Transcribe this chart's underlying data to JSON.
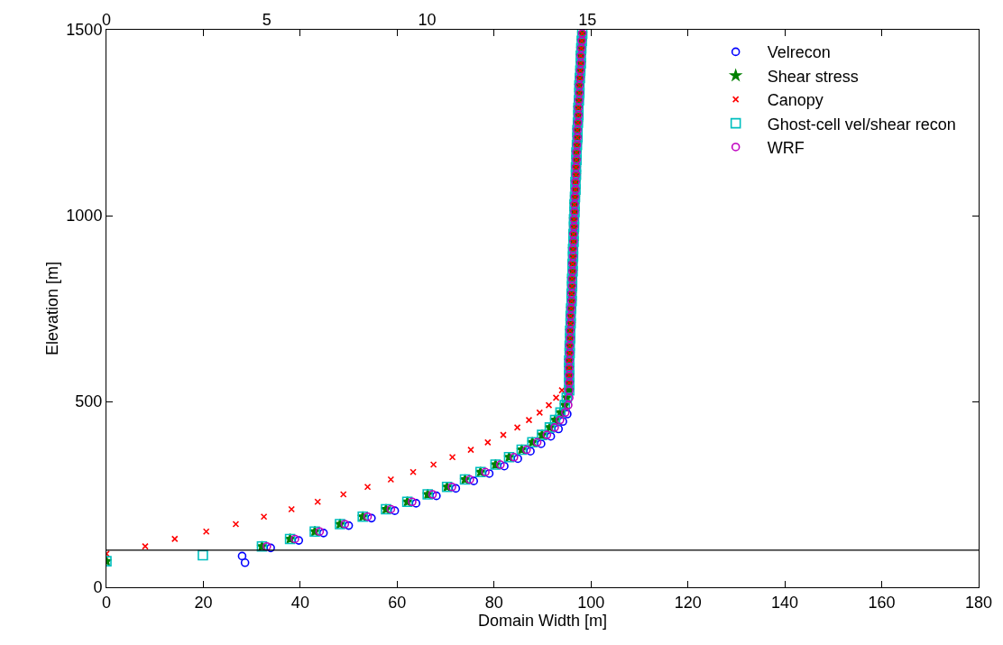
{
  "chart_data": {
    "type": "scatter",
    "xlabel": "Domain Width [m]",
    "ylabel": "Elevation [m]",
    "xlim": [
      0,
      180
    ],
    "xticks": [
      0,
      20,
      40,
      60,
      80,
      100,
      120,
      140,
      160,
      180
    ],
    "ylim": [
      0,
      1500
    ],
    "yticks": [
      0,
      500,
      1000,
      1500
    ],
    "x2lim": [
      0,
      27.2
    ],
    "x2ticks": [
      0,
      5,
      10,
      15
    ],
    "legend": "top right",
    "ref_lines": [
      {
        "axis": "y",
        "value": 100,
        "color": "#000000"
      }
    ],
    "series": [
      {
        "name": "Velrecon",
        "color": "#0000ff",
        "marker": "circle",
        "x": [
          28.6,
          28.0,
          33.9,
          39.7,
          44.8,
          50.0,
          54.7,
          59.5,
          63.9,
          68.1,
          72.1,
          75.8,
          79.0,
          82.1,
          84.9,
          87.5,
          89.7,
          91.7,
          93.3,
          94.2,
          95.1
        ],
        "values": [
          66,
          84,
          106,
          126,
          146,
          166,
          186,
          206,
          226,
          246,
          266,
          286,
          306,
          326,
          346,
          366,
          386,
          406,
          426,
          446,
          466
        ]
      },
      {
        "name": "Shear stress",
        "color": "#008000",
        "marker": "star",
        "x": [
          0,
          32.1,
          37.9,
          43.0,
          48.2,
          52.9,
          57.7,
          62.1,
          66.3,
          70.3,
          74.0,
          77.2,
          80.3,
          83.1,
          85.7,
          87.9,
          89.9,
          91.5,
          92.6,
          93.7,
          94.6,
          95.0,
          95.5,
          95.5,
          95.5,
          95.5,
          95.5,
          95.6,
          95.6,
          95.7,
          95.7,
          95.8,
          95.8,
          95.9,
          96.0,
          96.0,
          96.1,
          96.1,
          96.2,
          96.2,
          96.3,
          96.3,
          96.4,
          96.4,
          96.5,
          96.5,
          96.6,
          96.6,
          96.7,
          96.8,
          96.8,
          96.9,
          96.9,
          97.0,
          97.0,
          97.1,
          97.2,
          97.2,
          97.3,
          97.4,
          97.4,
          97.5,
          97.6,
          97.6,
          97.7,
          97.8,
          97.9,
          97.9,
          98.0,
          98.1,
          98.2
        ],
        "values": [
          70,
          110,
          130,
          150,
          170,
          190,
          210,
          230,
          250,
          270,
          290,
          310,
          330,
          350,
          370,
          390,
          410,
          430,
          450,
          470,
          490,
          510,
          530,
          550,
          570,
          590,
          610,
          630,
          650,
          670,
          690,
          710,
          730,
          750,
          770,
          790,
          810,
          830,
          850,
          870,
          890,
          910,
          930,
          950,
          970,
          990,
          1010,
          1030,
          1050,
          1070,
          1090,
          1110,
          1130,
          1150,
          1170,
          1190,
          1210,
          1230,
          1250,
          1270,
          1290,
          1310,
          1330,
          1350,
          1370,
          1390,
          1410,
          1430,
          1450,
          1470,
          1490
        ]
      },
      {
        "name": "Canopy",
        "color": "#ff0000",
        "marker": "cross",
        "x": [
          0,
          8.0,
          14.1,
          20.6,
          26.7,
          32.5,
          38.2,
          43.6,
          48.9,
          53.9,
          58.7,
          63.3,
          67.5,
          71.4,
          75.2,
          78.7,
          81.9,
          84.8,
          87.2,
          89.4,
          91.3,
          92.8,
          94.0,
          95.5,
          95.5,
          95.5,
          95.5,
          95.6,
          95.6,
          95.7,
          95.7,
          95.8,
          95.8,
          95.9,
          96.0,
          96.0,
          96.1,
          96.1,
          96.2,
          96.2,
          96.3,
          96.3,
          96.4,
          96.4,
          96.5,
          96.5,
          96.6,
          96.6,
          96.7,
          96.8,
          96.8,
          96.9,
          96.9,
          97.0,
          97.0,
          97.1,
          97.2,
          97.2,
          97.3,
          97.4,
          97.4,
          97.5,
          97.6,
          97.6,
          97.7,
          97.8,
          97.9,
          97.9,
          98.0,
          98.1,
          98.2
        ],
        "values": [
          90,
          110,
          130,
          150,
          170,
          190,
          210,
          230,
          250,
          270,
          290,
          310,
          330,
          350,
          370,
          390,
          410,
          430,
          450,
          470,
          490,
          510,
          530,
          550,
          570,
          590,
          610,
          630,
          650,
          670,
          690,
          710,
          730,
          750,
          770,
          790,
          810,
          830,
          850,
          870,
          890,
          910,
          930,
          950,
          970,
          990,
          1010,
          1030,
          1050,
          1070,
          1090,
          1110,
          1130,
          1150,
          1170,
          1190,
          1210,
          1230,
          1250,
          1270,
          1290,
          1310,
          1330,
          1350,
          1370,
          1390,
          1410,
          1430,
          1450,
          1470,
          1490
        ]
      },
      {
        "name": "Ghost-cell vel/shear recon",
        "color": "#00bfbf",
        "marker": "square",
        "x": [
          0,
          19.9,
          32.1,
          37.9,
          43.0,
          48.2,
          52.9,
          57.7,
          62.1,
          66.3,
          70.3,
          74.0,
          77.2,
          80.3,
          83.1,
          85.7,
          87.9,
          89.9,
          91.5,
          92.6,
          93.7,
          94.6,
          95.0,
          95.5,
          95.5,
          95.5,
          95.5,
          95.5,
          95.6,
          95.6,
          95.7,
          95.7,
          95.8,
          95.8,
          95.9,
          96.0,
          96.0,
          96.1,
          96.1,
          96.2,
          96.2,
          96.3,
          96.3,
          96.4,
          96.4,
          96.5,
          96.5,
          96.6,
          96.6,
          96.7,
          96.8,
          96.8,
          96.9,
          96.9,
          97.0,
          97.0,
          97.1,
          97.2,
          97.2,
          97.3,
          97.4,
          97.4,
          97.5,
          97.6,
          97.6,
          97.7,
          97.8,
          97.9,
          97.9,
          98.0,
          98.1,
          98.2
        ],
        "values": [
          70,
          86,
          110,
          130,
          150,
          170,
          190,
          210,
          230,
          250,
          270,
          290,
          310,
          330,
          350,
          370,
          390,
          410,
          430,
          450,
          470,
          490,
          510,
          530,
          550,
          570,
          590,
          610,
          630,
          650,
          670,
          690,
          710,
          730,
          750,
          770,
          790,
          810,
          830,
          850,
          870,
          890,
          910,
          930,
          950,
          970,
          990,
          1010,
          1030,
          1050,
          1070,
          1090,
          1110,
          1130,
          1150,
          1170,
          1190,
          1210,
          1230,
          1250,
          1270,
          1290,
          1310,
          1330,
          1350,
          1370,
          1390,
          1410,
          1430,
          1450,
          1470,
          1490
        ]
      },
      {
        "name": "WRF",
        "color": "#bf00bf",
        "marker": "circle",
        "x": [
          33.1,
          38.9,
          44.0,
          49.2,
          53.9,
          58.7,
          63.1,
          67.3,
          71.3,
          75.0,
          78.2,
          81.3,
          84.1,
          86.7,
          88.9,
          90.9,
          92.5,
          93.6,
          94.7,
          95.3,
          95.5,
          95.5,
          95.5,
          95.5,
          95.5,
          95.5,
          95.6,
          95.6,
          95.7,
          95.7,
          95.8,
          95.8,
          95.9,
          96.0,
          96.0,
          96.1,
          96.1,
          96.2,
          96.2,
          96.3,
          96.3,
          96.4,
          96.4,
          96.5,
          96.5,
          96.6,
          96.6,
          96.7,
          96.8,
          96.8,
          96.9,
          96.9,
          97.0,
          97.0,
          97.1,
          97.2,
          97.2,
          97.3,
          97.4,
          97.4,
          97.5,
          97.6,
          97.6,
          97.7,
          97.8,
          97.9,
          97.9,
          98.0,
          98.1,
          98.2
        ],
        "values": [
          110,
          130,
          150,
          170,
          190,
          210,
          230,
          250,
          270,
          290,
          310,
          330,
          350,
          370,
          390,
          410,
          430,
          450,
          470,
          490,
          510,
          530,
          550,
          570,
          590,
          610,
          630,
          650,
          670,
          690,
          710,
          730,
          750,
          770,
          790,
          810,
          830,
          850,
          870,
          890,
          910,
          930,
          950,
          970,
          990,
          1010,
          1030,
          1050,
          1070,
          1090,
          1110,
          1130,
          1150,
          1170,
          1190,
          1210,
          1230,
          1250,
          1270,
          1290,
          1310,
          1330,
          1350,
          1370,
          1390,
          1410,
          1430,
          1450,
          1470,
          1490
        ]
      }
    ]
  }
}
